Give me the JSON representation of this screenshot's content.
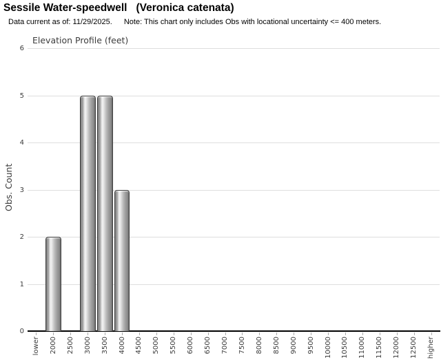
{
  "header": {
    "title_common": "Sessile Water-speedwell",
    "title_scientific": "(Veronica catenata)",
    "subtitle_date": "Data current as of: 11/29/2025.",
    "subtitle_note": "Note: This chart only includes Obs with locational uncertainty <= 400 meters."
  },
  "chart_data": {
    "type": "bar",
    "title": "Elevation Profile (feet)",
    "xlabel": "",
    "ylabel": "Obs. Count",
    "ylim": [
      0,
      6
    ],
    "yticks": [
      0,
      1,
      2,
      3,
      4,
      5,
      6
    ],
    "grid": true,
    "legend_position": "none",
    "categories": [
      "lower",
      "2000",
      "2500",
      "3000",
      "3500",
      "4000",
      "4500",
      "5000",
      "5500",
      "6000",
      "6500",
      "7000",
      "7500",
      "8000",
      "8500",
      "9000",
      "9500",
      "10000",
      "10500",
      "11000",
      "11500",
      "12000",
      "12500",
      "higher"
    ],
    "values": [
      0,
      2,
      0,
      5,
      5,
      3,
      0,
      0,
      0,
      0,
      0,
      0,
      0,
      0,
      0,
      0,
      0,
      0,
      0,
      0,
      0,
      0,
      0,
      0
    ],
    "colors": {
      "bar_edge": "#3f3f3f",
      "bar_highlight": "#f4f4f4",
      "bar_shadow": "#6a6a6a",
      "gridline": "#dedede",
      "axis_line": "#000000",
      "axis_text": "#3c3c3c",
      "title_text": "#000000"
    }
  }
}
